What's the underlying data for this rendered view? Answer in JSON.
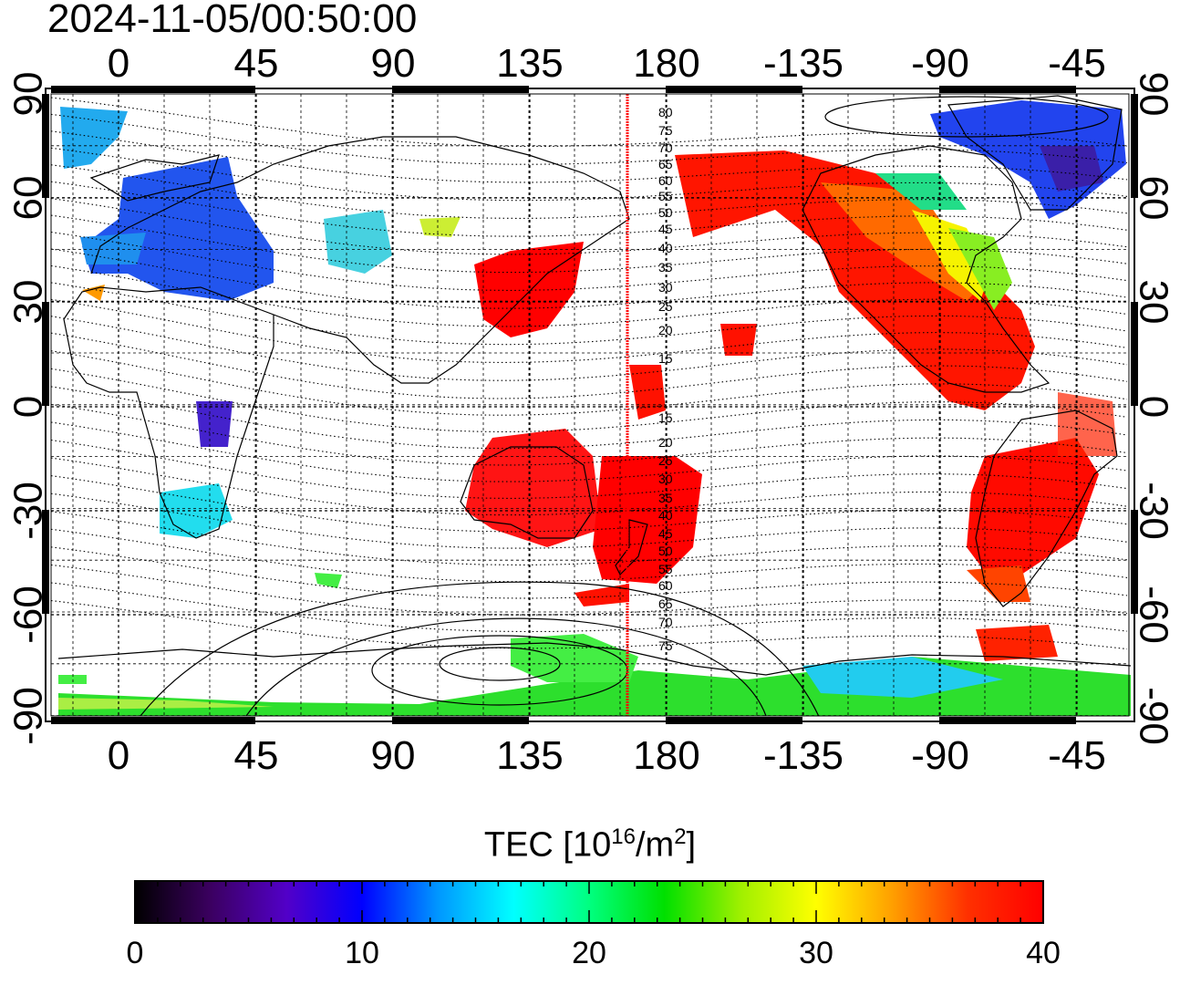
{
  "timestamp": "2024-11-05/00:50:00",
  "map": {
    "top_lon_labels": [
      "0",
      "45",
      "90",
      "135",
      "180",
      "-135",
      "-90",
      "-45"
    ],
    "bottom_lon_labels": [
      "0",
      "45",
      "90",
      "135",
      "180",
      "-135",
      "-90",
      "-45"
    ],
    "lat_labels": [
      "90",
      "60",
      "30",
      "0",
      "-30",
      "-60",
      "-90"
    ],
    "contour_labels": [
      "80",
      "75",
      "70",
      "65",
      "60",
      "55",
      "50",
      "45",
      "40",
      "35",
      "30",
      "25",
      "20",
      "15",
      "15",
      "20",
      "25",
      "30",
      "35",
      "40",
      "45",
      "50",
      "55",
      "60",
      "65",
      "70",
      "75"
    ],
    "terminator_color": "#ff0000"
  },
  "colorbar": {
    "title_main": "TEC  [10",
    "title_sup1": "16",
    "title_mid": "/m",
    "title_sup2": "2",
    "title_end": "]",
    "tick_labels": [
      "0",
      "10",
      "20",
      "30",
      "40"
    ],
    "gradient": [
      "#000000",
      "#3b0060",
      "#5200c8",
      "#0000ff",
      "#0096ff",
      "#00ffff",
      "#00ff80",
      "#00e000",
      "#a0f000",
      "#ffff00",
      "#ffa000",
      "#ff3000",
      "#ff0000"
    ]
  }
}
